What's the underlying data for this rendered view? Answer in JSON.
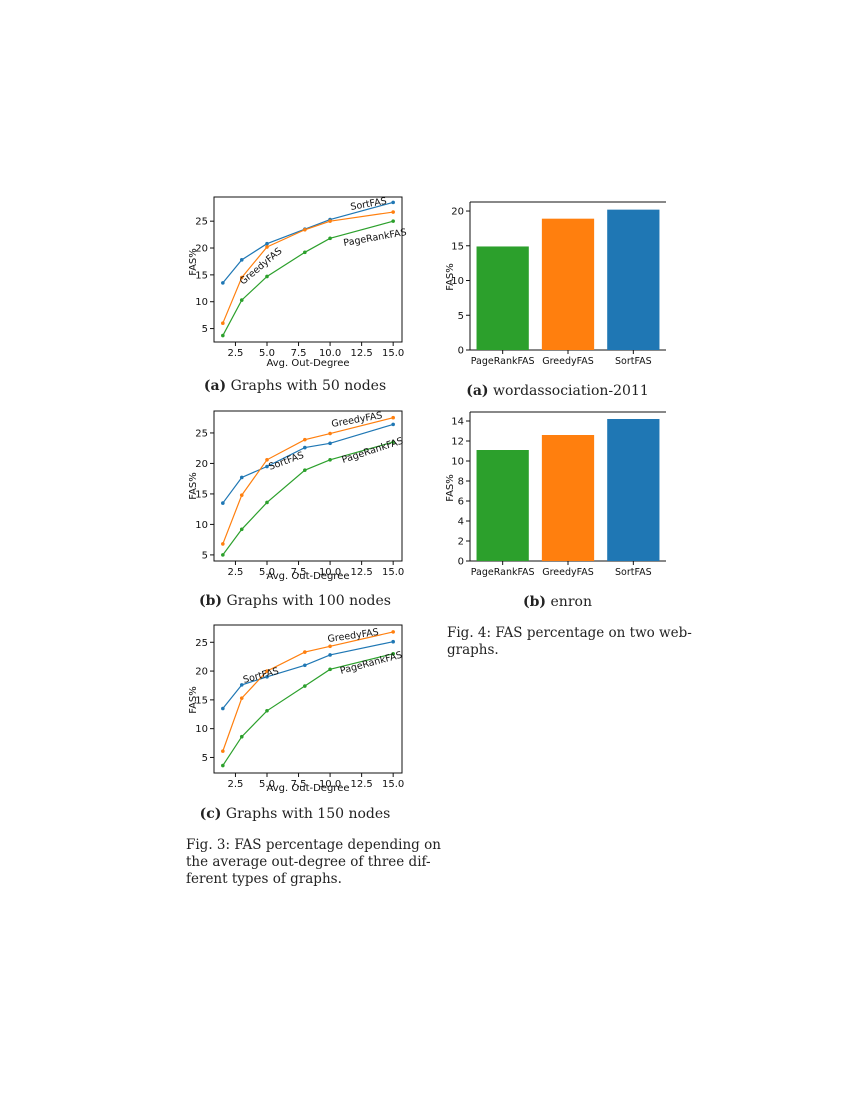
{
  "charts": {
    "line_a": {
      "ylabel": "FAS%",
      "xlabel": "Avg. Out-Degree",
      "xticks": [
        "2.5",
        "5.0",
        "7.5",
        "10.0",
        "12.5",
        "15.0"
      ],
      "yticks": [
        "5",
        "10",
        "15",
        "20",
        "25"
      ],
      "annotations": [
        "SortFAS",
        "GreedyFAS",
        "PageRankFAS"
      ]
    },
    "line_b": {
      "ylabel": "FAS%",
      "xlabel": "Avg. Out-Degree",
      "xticks": [
        "2.5",
        "5.0",
        "7.5",
        "10.0",
        "12.5",
        "15.0"
      ],
      "yticks": [
        "5",
        "10",
        "15",
        "20",
        "25"
      ],
      "annotations": [
        "GreedyFAS",
        "SortFAS",
        "PageRankFAS"
      ]
    },
    "line_c": {
      "ylabel": "FAS%",
      "xlabel": "Avg. Out-Degree",
      "xticks": [
        "2.5",
        "5.0",
        "7.5",
        "10.0",
        "12.5",
        "15.0"
      ],
      "yticks": [
        "5",
        "10",
        "15",
        "20",
        "25"
      ],
      "annotations": [
        "GreedyFAS",
        "SortFAS",
        "PageRankFAS"
      ]
    },
    "bar_a": {
      "ylabel": "FAS%",
      "yticks": [
        "0",
        "5",
        "10",
        "15",
        "20"
      ],
      "categories": [
        "PageRankFAS",
        "GreedyFAS",
        "SortFAS"
      ]
    },
    "bar_b": {
      "ylabel": "FAS%",
      "yticks": [
        "0",
        "2",
        "4",
        "6",
        "8",
        "10",
        "12",
        "14"
      ],
      "categories": [
        "PageRankFAS",
        "GreedyFAS",
        "SortFAS"
      ]
    }
  },
  "chart_data": [
    {
      "type": "line",
      "xlabel": "Avg. Out-Degree",
      "ylabel": "FAS%",
      "xlim": [
        0.8,
        15.7
      ],
      "ylim": [
        2.5,
        29.5
      ],
      "x": [
        1.5,
        3,
        5,
        8,
        10,
        15
      ],
      "colors": [
        "#1f77b4",
        "#ff7f0e",
        "#2ca02c"
      ],
      "series": [
        {
          "name": "SortFAS",
          "values": [
            13.5,
            17.8,
            20.8,
            23.5,
            25.3,
            28.5
          ]
        },
        {
          "name": "GreedyFAS",
          "values": [
            6.0,
            14.5,
            20.2,
            23.4,
            25.0,
            26.7
          ]
        },
        {
          "name": "PageRankFAS",
          "values": [
            3.7,
            10.3,
            14.7,
            19.2,
            21.8,
            25.0
          ]
        }
      ]
    },
    {
      "type": "line",
      "xlabel": "Avg. Out-Degree",
      "ylabel": "FAS%",
      "xlim": [
        0.8,
        15.7
      ],
      "ylim": [
        4.0,
        28.6
      ],
      "x": [
        1.5,
        3,
        5,
        8,
        10,
        15
      ],
      "colors": [
        "#1f77b4",
        "#ff7f0e",
        "#2ca02c"
      ],
      "series": [
        {
          "name": "SortFAS",
          "values": [
            13.5,
            17.7,
            19.5,
            22.6,
            23.3,
            26.4
          ]
        },
        {
          "name": "GreedyFAS",
          "values": [
            6.8,
            14.8,
            20.6,
            23.9,
            24.9,
            27.5
          ]
        },
        {
          "name": "PageRankFAS",
          "values": [
            5.0,
            9.2,
            13.6,
            18.9,
            20.6,
            23.5
          ]
        }
      ]
    },
    {
      "type": "line",
      "xlabel": "Avg. Out-Degree",
      "ylabel": "FAS%",
      "xlim": [
        0.8,
        15.7
      ],
      "ylim": [
        2.3,
        28.0
      ],
      "x": [
        1.5,
        3,
        5,
        8,
        10,
        15
      ],
      "colors": [
        "#1f77b4",
        "#ff7f0e",
        "#2ca02c"
      ],
      "series": [
        {
          "name": "SortFAS",
          "values": [
            13.5,
            17.6,
            19.0,
            21.0,
            22.8,
            25.1
          ]
        },
        {
          "name": "GreedyFAS",
          "values": [
            6.1,
            15.3,
            20.0,
            23.3,
            24.3,
            26.8
          ]
        },
        {
          "name": "PageRankFAS",
          "values": [
            3.6,
            8.6,
            13.1,
            17.4,
            20.3,
            23.0
          ]
        }
      ]
    },
    {
      "type": "bar",
      "ylabel": "FAS%",
      "ylim": [
        0,
        21.3
      ],
      "categories": [
        "PageRankFAS",
        "GreedyFAS",
        "SortFAS"
      ],
      "values": [
        14.9,
        18.9,
        20.2
      ],
      "colors": [
        "#2ca02c",
        "#ff7f0e",
        "#1f77b4"
      ]
    },
    {
      "type": "bar",
      "ylabel": "FAS%",
      "ylim": [
        0,
        14.9
      ],
      "categories": [
        "PageRankFAS",
        "GreedyFAS",
        "SortFAS"
      ],
      "values": [
        11.1,
        12.6,
        14.2
      ],
      "colors": [
        "#2ca02c",
        "#ff7f0e",
        "#1f77b4"
      ]
    }
  ],
  "captions": {
    "line_a": {
      "label": "(a)",
      "text": "Graphs with 50 nodes"
    },
    "line_b": {
      "label": "(b)",
      "text": "Graphs with 100 nodes"
    },
    "line_c": {
      "label": "(c)",
      "text": "Graphs with 150 nodes"
    },
    "bar_a": {
      "label": "(a)",
      "text": "wordassociation-2011"
    },
    "bar_b": {
      "label": "(b)",
      "text": "enron"
    }
  },
  "fig3": {
    "lines": [
      "Fig. 3: FAS percentage depending on",
      "the average out-degree of three dif-",
      "ferent types of graphs."
    ]
  },
  "fig4": {
    "lines": [
      "Fig. 4: FAS percentage on two web-",
      "graphs."
    ]
  }
}
